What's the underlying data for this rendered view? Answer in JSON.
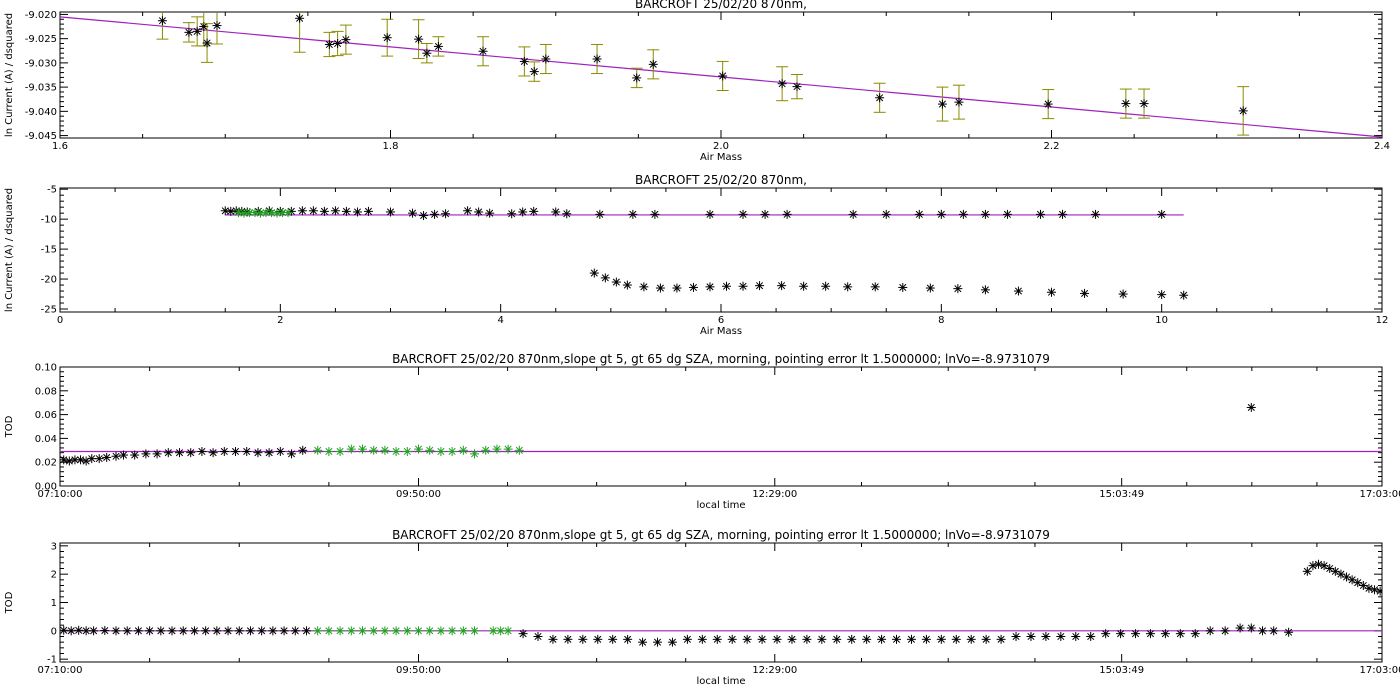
{
  "colors": {
    "data": "#000000",
    "selected": "#20a020",
    "fit": "#a020c0",
    "errorbar": "#8b8b00"
  },
  "chart_data": [
    {
      "type": "scatter",
      "title": "BARCROFT 25/02/20 870nm,",
      "xlabel": "Air Mass",
      "ylabel": "ln Current (A) / dsquared",
      "xlim": [
        1.6,
        2.4
      ],
      "ylim": [
        -9.0455,
        -9.0195
      ],
      "xticks": [
        1.6,
        1.8,
        2.0,
        2.2,
        2.4
      ],
      "xtick_labels": [
        "1.6",
        "1.8",
        "2.0",
        "2.2",
        "2.4"
      ],
      "yticks": [
        -9.045,
        -9.04,
        -9.035,
        -9.03,
        -9.025,
        -9.02
      ],
      "ytick_labels": [
        "-9.045",
        "-9.040",
        "-9.035",
        "-9.030",
        "-9.025",
        "-9.020"
      ],
      "fit": {
        "x": [
          1.6,
          2.4
        ],
        "y": [
          -9.0205,
          -9.0453
        ]
      },
      "points": [
        {
          "x": 1.662,
          "y": -9.0213,
          "err": 0.0038
        },
        {
          "x": 1.678,
          "y": -9.0237,
          "err": 0.002
        },
        {
          "x": 1.683,
          "y": -9.0235,
          "err": 0.003
        },
        {
          "x": 1.687,
          "y": -9.0225,
          "err": 0.004
        },
        {
          "x": 1.689,
          "y": -9.0259,
          "err": 0.004
        },
        {
          "x": 1.695,
          "y": -9.0223,
          "err": 0.0038
        },
        {
          "x": 1.745,
          "y": -9.0208,
          "err": 0.007
        },
        {
          "x": 1.763,
          "y": -9.0262,
          "err": 0.0025
        },
        {
          "x": 1.768,
          "y": -9.026,
          "err": 0.0025
        },
        {
          "x": 1.773,
          "y": -9.0252,
          "err": 0.003
        },
        {
          "x": 1.798,
          "y": -9.0248,
          "err": 0.0038
        },
        {
          "x": 1.817,
          "y": -9.0251,
          "err": 0.004
        },
        {
          "x": 1.822,
          "y": -9.028,
          "err": 0.002
        },
        {
          "x": 1.829,
          "y": -9.0266,
          "err": 0.002
        },
        {
          "x": 1.856,
          "y": -9.0276,
          "err": 0.003
        },
        {
          "x": 1.881,
          "y": -9.0297,
          "err": 0.003
        },
        {
          "x": 1.887,
          "y": -9.0318,
          "err": 0.002
        },
        {
          "x": 1.894,
          "y": -9.0292,
          "err": 0.003
        },
        {
          "x": 1.925,
          "y": -9.0292,
          "err": 0.003
        },
        {
          "x": 1.949,
          "y": -9.0331,
          "err": 0.002
        },
        {
          "x": 1.959,
          "y": -9.0303,
          "err": 0.003
        },
        {
          "x": 2.001,
          "y": -9.0327,
          "err": 0.003
        },
        {
          "x": 2.037,
          "y": -9.0343,
          "err": 0.0035
        },
        {
          "x": 2.046,
          "y": -9.0349,
          "err": 0.0025
        },
        {
          "x": 2.096,
          "y": -9.0372,
          "err": 0.003
        },
        {
          "x": 2.134,
          "y": -9.0385,
          "err": 0.0035
        },
        {
          "x": 2.144,
          "y": -9.0381,
          "err": 0.0035
        },
        {
          "x": 2.198,
          "y": -9.0385,
          "err": 0.003
        },
        {
          "x": 2.245,
          "y": -9.0384,
          "err": 0.003
        },
        {
          "x": 2.256,
          "y": -9.0384,
          "err": 0.003
        },
        {
          "x": 2.316,
          "y": -9.0399,
          "err": 0.005
        }
      ]
    },
    {
      "type": "scatter",
      "title": "BARCROFT 25/02/20 870nm,",
      "xlabel": "Air Mass",
      "ylabel": "ln Current (A) / dsquared",
      "xlim": [
        0,
        12
      ],
      "ylim": [
        -25.5,
        -4.8
      ],
      "xticks": [
        0,
        2,
        4,
        6,
        8,
        10,
        12
      ],
      "xtick_labels": [
        "0",
        "2",
        "4",
        "6",
        "8",
        "10",
        "12"
      ],
      "yticks": [
        -25,
        -20,
        -15,
        -10,
        -5
      ],
      "ytick_labels": [
        "-25",
        "-20",
        "-15",
        "-10",
        "-5"
      ],
      "fit": {
        "x": [
          1.5,
          10.2
        ],
        "y": [
          -9.3,
          -9.3
        ]
      },
      "series": [
        {
          "name": "",
          "color_key": "data",
          "x": [
            1.5,
            1.55,
            1.6,
            1.65,
            1.7,
            1.8,
            1.9,
            2.0,
            2.1,
            2.2,
            2.3,
            2.4,
            2.5,
            2.6,
            2.7,
            2.8,
            3.0,
            3.2,
            3.3,
            3.4,
            3.5,
            3.7,
            3.8,
            3.9,
            4.1,
            4.2,
            4.3,
            4.5,
            4.6,
            4.9,
            5.2,
            5.4,
            5.9,
            6.2,
            6.4,
            6.6,
            7.2,
            7.5,
            7.8,
            8.0,
            8.2,
            8.4,
            8.6,
            8.9,
            9.1,
            9.4,
            10.0
          ],
          "y": [
            -8.6,
            -8.7,
            -8.6,
            -8.7,
            -8.8,
            -8.7,
            -8.6,
            -8.7,
            -8.7,
            -8.6,
            -8.6,
            -8.7,
            -8.6,
            -8.7,
            -8.8,
            -8.7,
            -8.8,
            -9.0,
            -9.4,
            -9.2,
            -9.1,
            -8.6,
            -8.8,
            -9.0,
            -9.1,
            -8.8,
            -8.7,
            -8.8,
            -9.1,
            -9.2,
            -9.2,
            -9.2,
            -9.2,
            -9.2,
            -9.2,
            -9.2,
            -9.2,
            -9.2,
            -9.2,
            -9.2,
            -9.2,
            -9.2,
            -9.2,
            -9.2,
            -9.2,
            -9.2,
            -9.2
          ]
        },
        {
          "name": "",
          "color_key": "data",
          "x": [
            4.85,
            4.95,
            5.05,
            5.15,
            5.3,
            5.45,
            5.6,
            5.75,
            5.9,
            6.05,
            6.2,
            6.35,
            6.55,
            6.75,
            6.95,
            7.15,
            7.4,
            7.65,
            7.9,
            8.15,
            8.4,
            8.7,
            9.0,
            9.3,
            9.65,
            10.0,
            10.2
          ],
          "y": [
            -19.0,
            -19.8,
            -20.5,
            -21.0,
            -21.3,
            -21.5,
            -21.5,
            -21.4,
            -21.3,
            -21.2,
            -21.2,
            -21.1,
            -21.1,
            -21.2,
            -21.2,
            -21.3,
            -21.3,
            -21.4,
            -21.5,
            -21.6,
            -21.8,
            -22.0,
            -22.2,
            -22.4,
            -22.5,
            -22.6,
            -22.7
          ]
        },
        {
          "name": "",
          "color_key": "selected",
          "x": [
            1.62,
            1.67,
            1.72,
            1.77,
            1.82,
            1.87,
            1.92,
            1.97,
            2.02,
            2.07
          ],
          "y": [
            -8.9,
            -9.0,
            -8.9,
            -8.9,
            -9.0,
            -8.9,
            -8.9,
            -9.0,
            -8.9,
            -8.9
          ]
        }
      ]
    },
    {
      "type": "scatter",
      "title": "BARCROFT 25/02/20 870nm,slope gt 5, gt 65 dg SZA, morning, pointing error lt 1.5000000; lnVo=-8.9731079",
      "xlabel": "local time",
      "ylabel": "TOD",
      "xlim": [
        0,
        35400
      ],
      "ylim": [
        0,
        0.1
      ],
      "xticks": [
        0,
        9600,
        19140,
        28429,
        35400
      ],
      "xtick_labels": [
        "07:10:00",
        "09:50:00",
        "12:29:00",
        "15:03:49",
        "17:03:00"
      ],
      "yticks": [
        0.0,
        0.02,
        0.04,
        0.06,
        0.08,
        0.1
      ],
      "ytick_labels": [
        "0.00",
        "0.02",
        "0.04",
        "0.06",
        "0.08",
        "0.10"
      ],
      "fit": {
        "x": [
          0,
          35400
        ],
        "y": [
          0.029,
          0.029
        ]
      },
      "series": [
        {
          "name": "",
          "color_key": "data",
          "x": [
            100,
            250,
            400,
            550,
            700,
            850,
            1050,
            1250,
            1500,
            1700,
            2000,
            2300,
            2600,
            2900,
            3200,
            3500,
            3800,
            4100,
            4400,
            4700,
            5000,
            5300,
            5600,
            5900,
            6200,
            6500
          ],
          "y": [
            0.022,
            0.021,
            0.022,
            0.022,
            0.021,
            0.023,
            0.023,
            0.024,
            0.025,
            0.026,
            0.026,
            0.027,
            0.027,
            0.028,
            0.028,
            0.028,
            0.029,
            0.028,
            0.029,
            0.029,
            0.029,
            0.028,
            0.028,
            0.029,
            0.027,
            0.03
          ]
        },
        {
          "name": "",
          "color_key": "selected",
          "x": [
            6900,
            7200,
            7500,
            7800,
            8100,
            8400,
            8700,
            9000,
            9300,
            9600,
            9900,
            10200,
            10500,
            10800,
            11100,
            11400,
            11700,
            12000,
            12300
          ],
          "y": [
            0.03,
            0.029,
            0.029,
            0.031,
            0.031,
            0.03,
            0.03,
            0.029,
            0.029,
            0.031,
            0.03,
            0.029,
            0.029,
            0.03,
            0.027,
            0.03,
            0.031,
            0.031,
            0.03
          ]
        },
        {
          "name": "",
          "color_key": "data",
          "x": [
            31900
          ],
          "y": [
            0.066
          ]
        }
      ]
    },
    {
      "type": "scatter",
      "title": "BARCROFT 25/02/20 870nm,slope gt 5, gt 65 dg SZA, morning, pointing error lt 1.5000000; lnVo=-8.9731079",
      "xlabel": "local time",
      "ylabel": "TOD",
      "xlim": [
        0,
        35400
      ],
      "ylim": [
        -1.1,
        3.1
      ],
      "xticks": [
        0,
        9600,
        19140,
        28429,
        35400
      ],
      "xtick_labels": [
        "07:10:00",
        "09:50:00",
        "12:29:00",
        "15:03:49",
        "17:03:00"
      ],
      "yticks": [
        -1,
        0,
        1,
        2,
        3
      ],
      "ytick_labels": [
        "-1",
        "0",
        "1",
        "2",
        "3"
      ],
      "fit": {
        "x": [
          0,
          35400
        ],
        "y": [
          0.0,
          0.0
        ]
      },
      "series": [
        {
          "name": "",
          "color_key": "data",
          "x": [
            100,
            300,
            500,
            700,
            900,
            1200,
            1500,
            1800,
            2100,
            2400,
            2700,
            3000,
            3300,
            3600,
            3900,
            4200,
            4500,
            4800,
            5100,
            5400,
            5700,
            6000,
            6300,
            6600
          ],
          "y": [
            0.02,
            0.0,
            0.02,
            0.0,
            0.0,
            0.01,
            0.0,
            0.0,
            0.0,
            0.0,
            0.0,
            0.0,
            0.0,
            0.0,
            0.0,
            0.0,
            0.0,
            0.0,
            0.0,
            0.0,
            0.0,
            0.0,
            0.0,
            0.0
          ]
        },
        {
          "name": "",
          "color_key": "selected",
          "x": [
            6900,
            7200,
            7500,
            7800,
            8100,
            8400,
            8700,
            9000,
            9300,
            9600,
            9900,
            10200,
            10500,
            10800,
            11100,
            11600,
            11800,
            12000
          ],
          "y": [
            0.0,
            0.0,
            0.0,
            0.0,
            0.0,
            0.0,
            0.0,
            0.0,
            0.0,
            0.0,
            0.0,
            0.0,
            0.0,
            0.0,
            0.0,
            0.0,
            0.0,
            0.0
          ]
        },
        {
          "name": "",
          "color_key": "data",
          "x": [
            12400,
            12800,
            13200,
            13600,
            14000,
            14400,
            14800,
            15200,
            15600,
            16000,
            16400,
            16800,
            17200,
            17600,
            18000,
            18400,
            18800,
            19200,
            19600,
            20000,
            20400,
            20800,
            21200,
            21600,
            22000,
            22400,
            22800,
            23200,
            23600,
            24000,
            24400,
            24800,
            25200,
            25600,
            26000,
            26400,
            26800,
            27200,
            27600,
            28000,
            28400,
            28800,
            29200,
            29600,
            30000,
            30400,
            30800,
            31200,
            31600,
            31900,
            32200,
            32500,
            32900
          ],
          "y": [
            -0.1,
            -0.2,
            -0.3,
            -0.3,
            -0.3,
            -0.3,
            -0.3,
            -0.3,
            -0.4,
            -0.4,
            -0.4,
            -0.3,
            -0.3,
            -0.3,
            -0.3,
            -0.3,
            -0.3,
            -0.3,
            -0.3,
            -0.3,
            -0.3,
            -0.3,
            -0.3,
            -0.3,
            -0.3,
            -0.3,
            -0.3,
            -0.3,
            -0.3,
            -0.3,
            -0.3,
            -0.3,
            -0.3,
            -0.2,
            -0.2,
            -0.2,
            -0.2,
            -0.2,
            -0.2,
            -0.1,
            -0.1,
            -0.1,
            -0.1,
            -0.1,
            -0.1,
            -0.1,
            0.0,
            0.0,
            0.1,
            0.1,
            0.0,
            0.0,
            -0.05
          ]
        },
        {
          "name": "",
          "color_key": "data",
          "x": [
            33400,
            33550,
            33700,
            33850,
            34000,
            34150,
            34300,
            34450,
            34600,
            34750,
            34900,
            35050,
            35200,
            35350
          ],
          "y": [
            2.1,
            2.3,
            2.35,
            2.3,
            2.2,
            2.1,
            2.0,
            1.9,
            1.8,
            1.7,
            1.6,
            1.5,
            1.45,
            1.4
          ]
        }
      ]
    }
  ]
}
